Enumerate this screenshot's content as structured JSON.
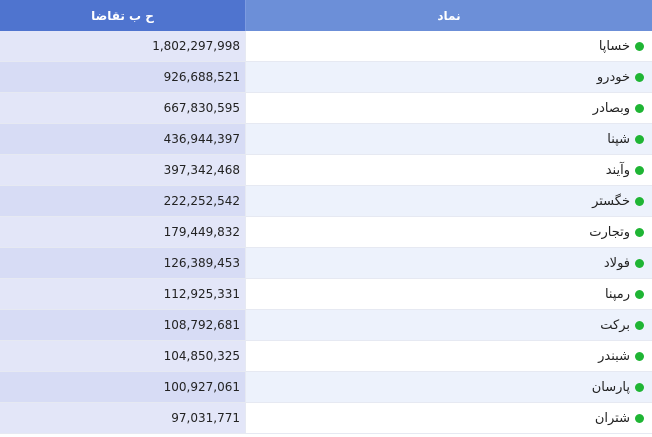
{
  "header": {
    "symbol_label": "نماد",
    "demand_label": "ح ب تقاضا"
  },
  "colors": {
    "header_symbol": "#6c8fd8",
    "header_demand": "#4f74cf",
    "status_dot": "#1fb534"
  },
  "rows": [
    {
      "symbol": "خساپا",
      "demand": "1,802,297,998",
      "status_icon": "green-dot-icon"
    },
    {
      "symbol": "خودرو",
      "demand": "926,688,521",
      "status_icon": "green-dot-icon"
    },
    {
      "symbol": "وبصادر",
      "demand": "667,830,595",
      "status_icon": "green-dot-icon"
    },
    {
      "symbol": "شپنا",
      "demand": "436,944,397",
      "status_icon": "green-dot-icon"
    },
    {
      "symbol": "وآیند",
      "demand": "397,342,468",
      "status_icon": "green-dot-icon"
    },
    {
      "symbol": "خگستر",
      "demand": "222,252,542",
      "status_icon": "green-dot-icon"
    },
    {
      "symbol": "وتجارت",
      "demand": "179,449,832",
      "status_icon": "green-dot-icon"
    },
    {
      "symbol": "فولاد",
      "demand": "126,389,453",
      "status_icon": "green-dot-icon"
    },
    {
      "symbol": "رمپنا",
      "demand": "112,925,331",
      "status_icon": "green-dot-icon"
    },
    {
      "symbol": "برکت",
      "demand": "108,792,681",
      "status_icon": "green-dot-icon"
    },
    {
      "symbol": "شبندر",
      "demand": "104,850,325",
      "status_icon": "green-dot-icon"
    },
    {
      "symbol": "پارسان",
      "demand": "100,927,061",
      "status_icon": "green-dot-icon"
    },
    {
      "symbol": "شتران",
      "demand": "97,031,771",
      "status_icon": "green-dot-icon"
    }
  ]
}
